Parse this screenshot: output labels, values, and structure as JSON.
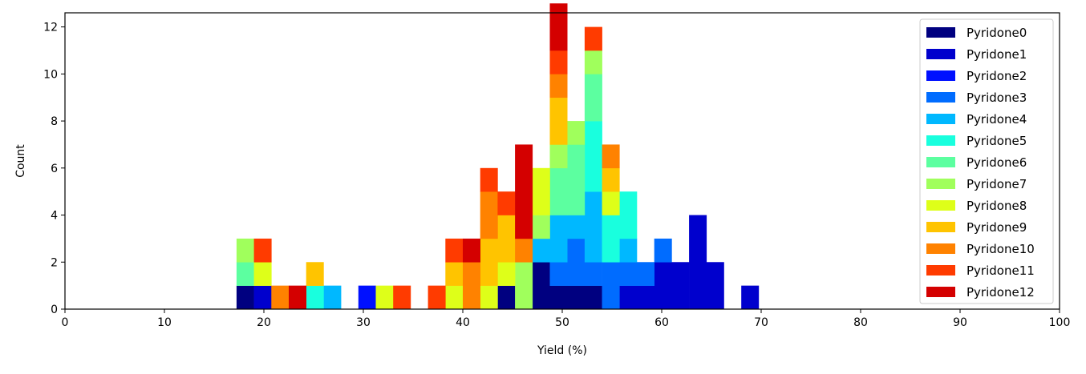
{
  "chart_data": {
    "type": "bar",
    "stacked": true,
    "xlabel": "Yield (%)",
    "ylabel": "Count",
    "xlim": [
      0,
      100
    ],
    "ylim": [
      0,
      12.6
    ],
    "xticks": [
      0,
      10,
      20,
      30,
      40,
      50,
      60,
      70,
      80,
      90,
      100
    ],
    "yticks": [
      0,
      2,
      4,
      6,
      8,
      10,
      12
    ],
    "bin_width": 1.75,
    "bin_starts": [
      17.25,
      19.0,
      20.75,
      22.5,
      24.25,
      26.0,
      27.75,
      29.5,
      31.25,
      33.0,
      34.75,
      36.5,
      38.25,
      40.0,
      41.75,
      43.5,
      45.25,
      47.0,
      48.75,
      50.5,
      52.25,
      54.0,
      55.75,
      57.5,
      59.25,
      61.0,
      62.75,
      64.5,
      66.25,
      68.0
    ],
    "legend_position": "upper right",
    "series": [
      {
        "name": "Pyridone0",
        "color": "#000080",
        "values": [
          1,
          0,
          0,
          0,
          0,
          0,
          0,
          0,
          0,
          0,
          0,
          0,
          0,
          0,
          0,
          1,
          0,
          2,
          1,
          1,
          1,
          0,
          0,
          0,
          0,
          0,
          0,
          0,
          0,
          0
        ]
      },
      {
        "name": "Pyridone1",
        "color": "#0000cd",
        "values": [
          0,
          1,
          0,
          0,
          0,
          0,
          0,
          0,
          0,
          0,
          0,
          0,
          0,
          0,
          0,
          0,
          0,
          0,
          0,
          0,
          0,
          0,
          1,
          1,
          2,
          2,
          4,
          2,
          0,
          1
        ]
      },
      {
        "name": "Pyridone2",
        "color": "#0010ff",
        "values": [
          0,
          0,
          0,
          0,
          0,
          0,
          0,
          1,
          0,
          0,
          0,
          0,
          0,
          0,
          0,
          0,
          0,
          0,
          0,
          0,
          0,
          0,
          0,
          0,
          0,
          0,
          0,
          0,
          0,
          0
        ]
      },
      {
        "name": "Pyridone3",
        "color": "#006cff",
        "values": [
          0,
          0,
          0,
          0,
          0,
          0,
          0,
          0,
          0,
          0,
          0,
          0,
          0,
          0,
          0,
          0,
          0,
          0,
          1,
          2,
          1,
          2,
          1,
          1,
          1,
          0,
          0,
          0,
          0,
          0
        ]
      },
      {
        "name": "Pyridone4",
        "color": "#00b8ff",
        "values": [
          0,
          0,
          0,
          0,
          0,
          1,
          0,
          0,
          0,
          0,
          0,
          0,
          0,
          0,
          0,
          0,
          0,
          1,
          2,
          1,
          3,
          0,
          1,
          0,
          0,
          0,
          0,
          0,
          0,
          0
        ]
      },
      {
        "name": "Pyridone5",
        "color": "#19ffde",
        "values": [
          0,
          0,
          0,
          0,
          1,
          0,
          0,
          0,
          0,
          0,
          0,
          0,
          0,
          0,
          0,
          0,
          0,
          0,
          0,
          0,
          3,
          2,
          2,
          0,
          0,
          0,
          0,
          0,
          0,
          0
        ]
      },
      {
        "name": "Pyridone6",
        "color": "#5cffa0",
        "values": [
          1,
          0,
          0,
          0,
          0,
          0,
          0,
          0,
          0,
          0,
          0,
          0,
          0,
          0,
          0,
          0,
          0,
          0,
          2,
          3,
          2,
          0,
          0,
          0,
          0,
          0,
          0,
          0,
          0,
          0
        ]
      },
      {
        "name": "Pyridone7",
        "color": "#a0ff5c",
        "values": [
          1,
          0,
          0,
          0,
          0,
          0,
          0,
          0,
          0,
          0,
          0,
          0,
          0,
          0,
          0,
          0,
          2,
          1,
          1,
          1,
          1,
          0,
          0,
          0,
          0,
          0,
          0,
          0,
          0,
          0
        ]
      },
      {
        "name": "Pyridone8",
        "color": "#deff19",
        "values": [
          0,
          1,
          0,
          0,
          0,
          0,
          0,
          0,
          1,
          0,
          0,
          0,
          1,
          0,
          1,
          1,
          0,
          2,
          0,
          0,
          0,
          1,
          0,
          0,
          0,
          0,
          0,
          0,
          0,
          0
        ]
      },
      {
        "name": "Pyridone9",
        "color": "#ffc400",
        "values": [
          0,
          0,
          0,
          0,
          1,
          0,
          0,
          0,
          0,
          0,
          0,
          0,
          1,
          0,
          2,
          2,
          0,
          0,
          2,
          0,
          0,
          1,
          0,
          0,
          0,
          0,
          0,
          0,
          0,
          0
        ]
      },
      {
        "name": "Pyridone10",
        "color": "#ff8200",
        "values": [
          0,
          0,
          1,
          0,
          0,
          0,
          0,
          0,
          0,
          0,
          0,
          0,
          0,
          2,
          2,
          0,
          1,
          0,
          1,
          0,
          0,
          1,
          0,
          0,
          0,
          0,
          0,
          0,
          0,
          0
        ]
      },
      {
        "name": "Pyridone11",
        "color": "#ff3b00",
        "values": [
          0,
          1,
          0,
          0,
          0,
          0,
          0,
          0,
          0,
          1,
          0,
          1,
          1,
          0,
          1,
          1,
          0,
          0,
          1,
          0,
          1,
          0,
          0,
          0,
          0,
          0,
          0,
          0,
          0,
          0
        ]
      },
      {
        "name": "Pyridone12",
        "color": "#d40000",
        "values": [
          0,
          0,
          0,
          1,
          0,
          0,
          0,
          0,
          0,
          0,
          0,
          0,
          0,
          1,
          0,
          0,
          4,
          0,
          2,
          0,
          0,
          0,
          0,
          0,
          0,
          0,
          0,
          0,
          0,
          0
        ]
      }
    ]
  }
}
